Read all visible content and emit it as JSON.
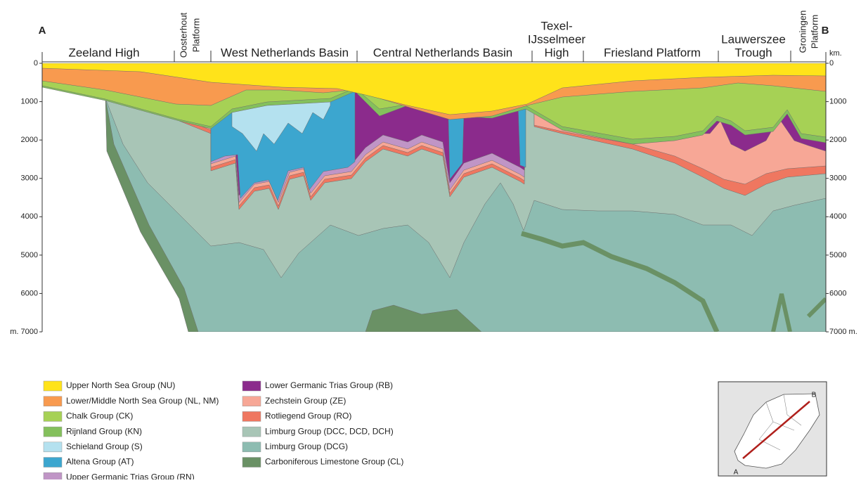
{
  "header": {
    "left_label": "A",
    "right_label": "B"
  },
  "regions": [
    {
      "lines": [
        "Zeeland High"
      ]
    },
    {
      "lines": [
        "Oosterhout",
        "Platform"
      ]
    },
    {
      "lines": [
        "West Netherlands Basin"
      ]
    },
    {
      "lines": [
        "Central Netherlands Basin"
      ]
    },
    {
      "lines": [
        "Texel-",
        "IJsselmeer",
        "High"
      ]
    },
    {
      "lines": [
        "Friesland Platform"
      ]
    },
    {
      "lines": [
        "Lauwerszee",
        "Trough"
      ]
    },
    {
      "lines": [
        "Groningen",
        "Platform"
      ]
    }
  ],
  "depth_axis": {
    "left_labels": [
      "0",
      "1000",
      "2000",
      "3000",
      "4000",
      "5000",
      "6000",
      "m. 7000"
    ],
    "right_unit": "km.",
    "right_labels": [
      "0",
      "1000",
      "2000",
      "3000",
      "4000",
      "5000",
      "6000",
      "7000 m."
    ]
  },
  "legend": {
    "items": [
      {
        "label": "Upper North Sea Group (NU)",
        "color": "#ffe31a"
      },
      {
        "label": "Lower/Middle North Sea Group (NL, NM)",
        "color": "#f89a4f"
      },
      {
        "label": "Chalk Group (CK)",
        "color": "#a6d155"
      },
      {
        "label": "Rijnland Group (KN)",
        "color": "#84c05c"
      },
      {
        "label": "Schieland Group (S)",
        "color": "#b4e1ef"
      },
      {
        "label": "Altena Group (AT)",
        "color": "#3ca6cf"
      },
      {
        "label": "Upper Germanic Trias Group (RN)",
        "color": "#c095c6"
      },
      {
        "label": "Lower Germanic Trias Group (RB)",
        "color": "#8b2b8c"
      },
      {
        "label": "Zechstein Group (ZE)",
        "color": "#f7a796"
      },
      {
        "label": "Rotliegend Group (RO)",
        "color": "#ef7760"
      },
      {
        "label": "Limburg Group (DCC, DCD, DCH)",
        "color": "#a8c5b6"
      },
      {
        "label": "Limburg Group (DCG)",
        "color": "#8dbcb1"
      },
      {
        "label": "Carboniferous Limestone Group (CL)",
        "color": "#6a9165"
      }
    ]
  },
  "map": {
    "start": "A",
    "end": "B"
  }
}
